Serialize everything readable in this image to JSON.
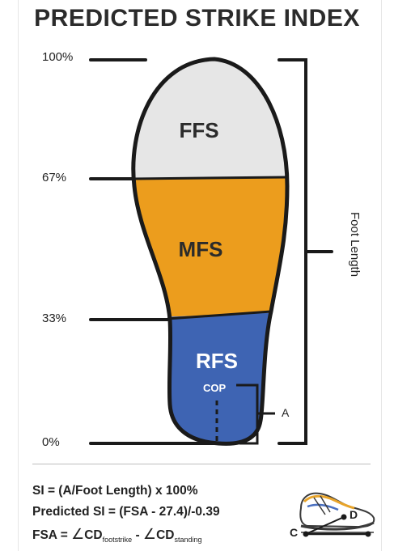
{
  "title": "PREDICTED STRIKE INDEX",
  "percent_marks": [
    "100%",
    "67%",
    "33%",
    "0%"
  ],
  "zones": {
    "top": {
      "label": "FFS",
      "color": "#e6e6e6",
      "text_color": "#2b2b2b"
    },
    "middle": {
      "label": "MFS",
      "color": "#ec9d1d",
      "text_color": "#2b2b2b"
    },
    "bottom": {
      "label": "RFS",
      "color": "#3e64b3",
      "text_color": "#ffffff"
    }
  },
  "cop_label": "COP",
  "a_label": "A",
  "foot_length_label": "Foot Length",
  "formulas": {
    "line1": "SI = (A/Foot Length) x 100%",
    "line2": "Predicted SI = (FSA - 27.4)/-0.39",
    "line3_prefix": "FSA = ",
    "line3_angle": "∠",
    "line3_cd1": "CD",
    "line3_sub1": "footstrike",
    "line3_minus": " - ",
    "line3_cd2": "CD",
    "line3_sub2": "standing"
  },
  "shoe_points": {
    "c": "C",
    "d": "D"
  }
}
